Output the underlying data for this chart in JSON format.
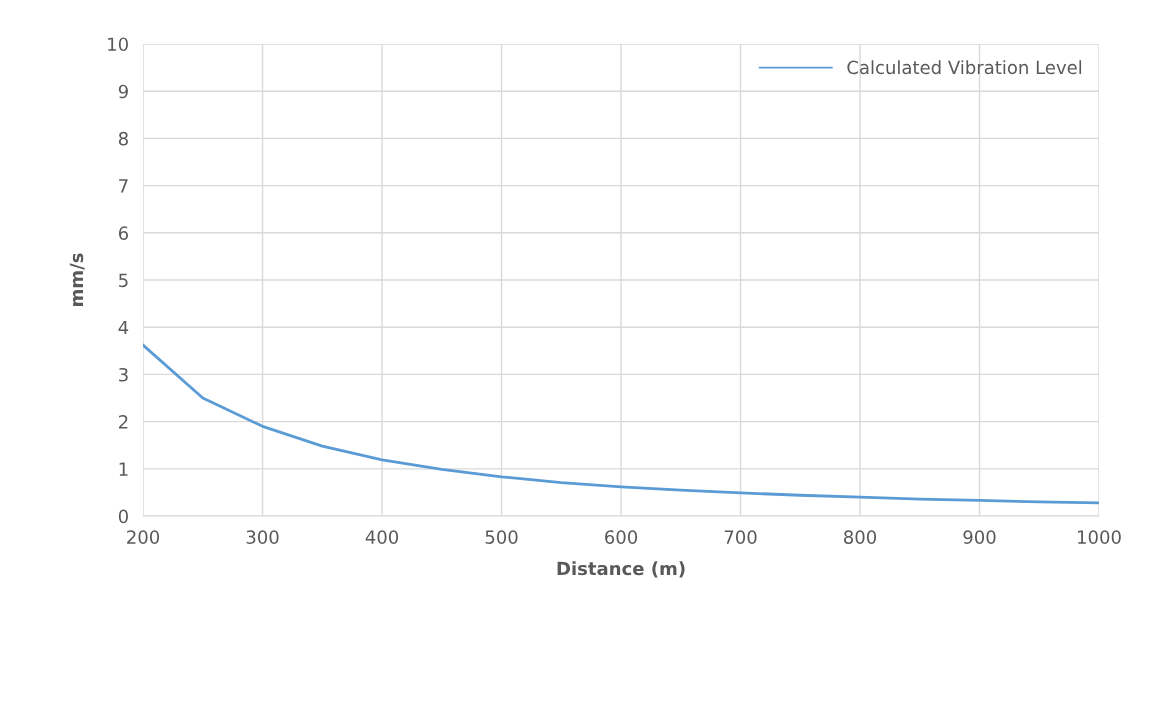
{
  "chart_data": {
    "type": "line",
    "xlabel": "Distance (m)",
    "ylabel": "mm/s",
    "xlim": [
      200,
      1000
    ],
    "xticks": [
      200,
      300,
      400,
      500,
      600,
      700,
      800,
      900,
      1000
    ],
    "ylim": [
      0,
      10
    ],
    "yticks": [
      0,
      1,
      2,
      3,
      4,
      5,
      6,
      7,
      8,
      9,
      10
    ],
    "grid": true,
    "legend": "top right",
    "marker": "none",
    "line_style": "solid",
    "series": [
      {
        "name": "Calculated Vibration Level",
        "color": "#5b9bd5",
        "x": [
          200,
          250,
          300,
          350,
          400,
          450,
          500,
          550,
          600,
          650,
          700,
          750,
          800,
          850,
          900,
          950,
          1000
        ],
        "values": [
          3.62,
          2.5,
          1.9,
          1.48,
          1.19,
          0.99,
          0.83,
          0.71,
          0.62,
          0.55,
          0.49,
          0.44,
          0.4,
          0.36,
          0.33,
          0.3,
          0.28
        ]
      }
    ]
  }
}
